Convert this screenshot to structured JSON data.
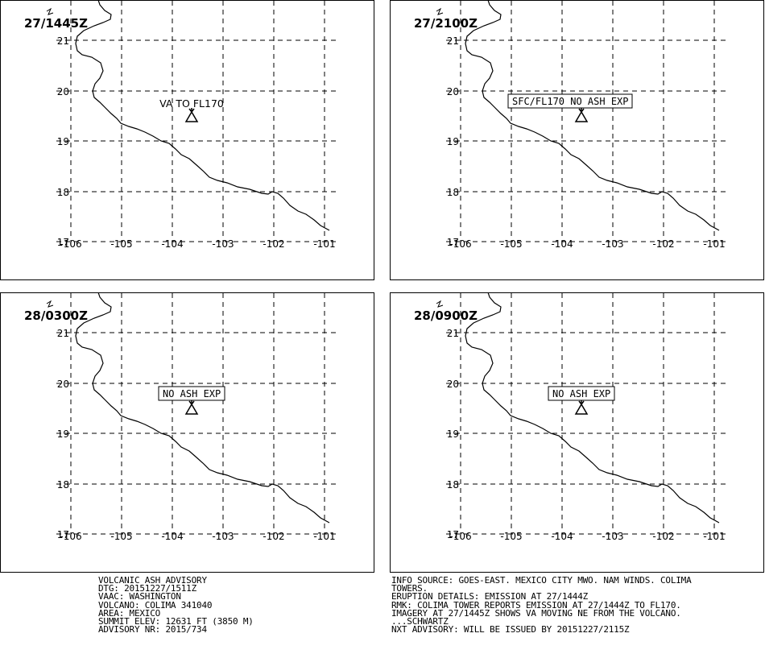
{
  "panels": [
    {
      "time": "27/1445Z",
      "label": "VA TO FL170",
      "boxed": false
    },
    {
      "time": "27/2100Z",
      "label": "SFC/FL170 NO ASH EXP",
      "boxed": true
    },
    {
      "time": "28/0300Z",
      "label": "NO ASH EXP",
      "boxed": true
    },
    {
      "time": "28/0900Z",
      "label": "NO ASH EXP",
      "boxed": true
    }
  ],
  "lat_labels": [
    "21",
    "20",
    "19",
    "18",
    "17"
  ],
  "lon_labels": [
    "-106",
    "-105",
    "-104",
    "-103",
    "-102",
    "-101"
  ],
  "volcano_icon": "volcano-triangle-icon",
  "advisory_left": [
    "VOLCANIC ASH ADVISORY",
    "DTG: 20151227/1511Z",
    "VAAC: WASHINGTON",
    "VOLCANO: COLIMA 341040",
    "AREA: MEXICO",
    "SUMMIT ELEV: 12631 FT (3850 M)",
    "ADVISORY NR: 2015/734"
  ],
  "advisory_right": [
    "INFO SOURCE: GOES-EAST. MEXICO CITY MWO. NAM WINDS. COLIMA",
    "TOWERS.",
    "ERUPTION DETAILS: EMISSION AT 27/1444Z",
    "RMK: COLIMA TOWER REPORTS EMISSION AT 27/1444Z TO FL170.",
    "IMAGERY AT 27/1445Z SHOWS VA MOVING NE FROM THE VOLCANO.",
    "...SCHWARTZ",
    "NXT ADVISORY: WILL BE ISSUED BY 20151227/2115Z"
  ]
}
